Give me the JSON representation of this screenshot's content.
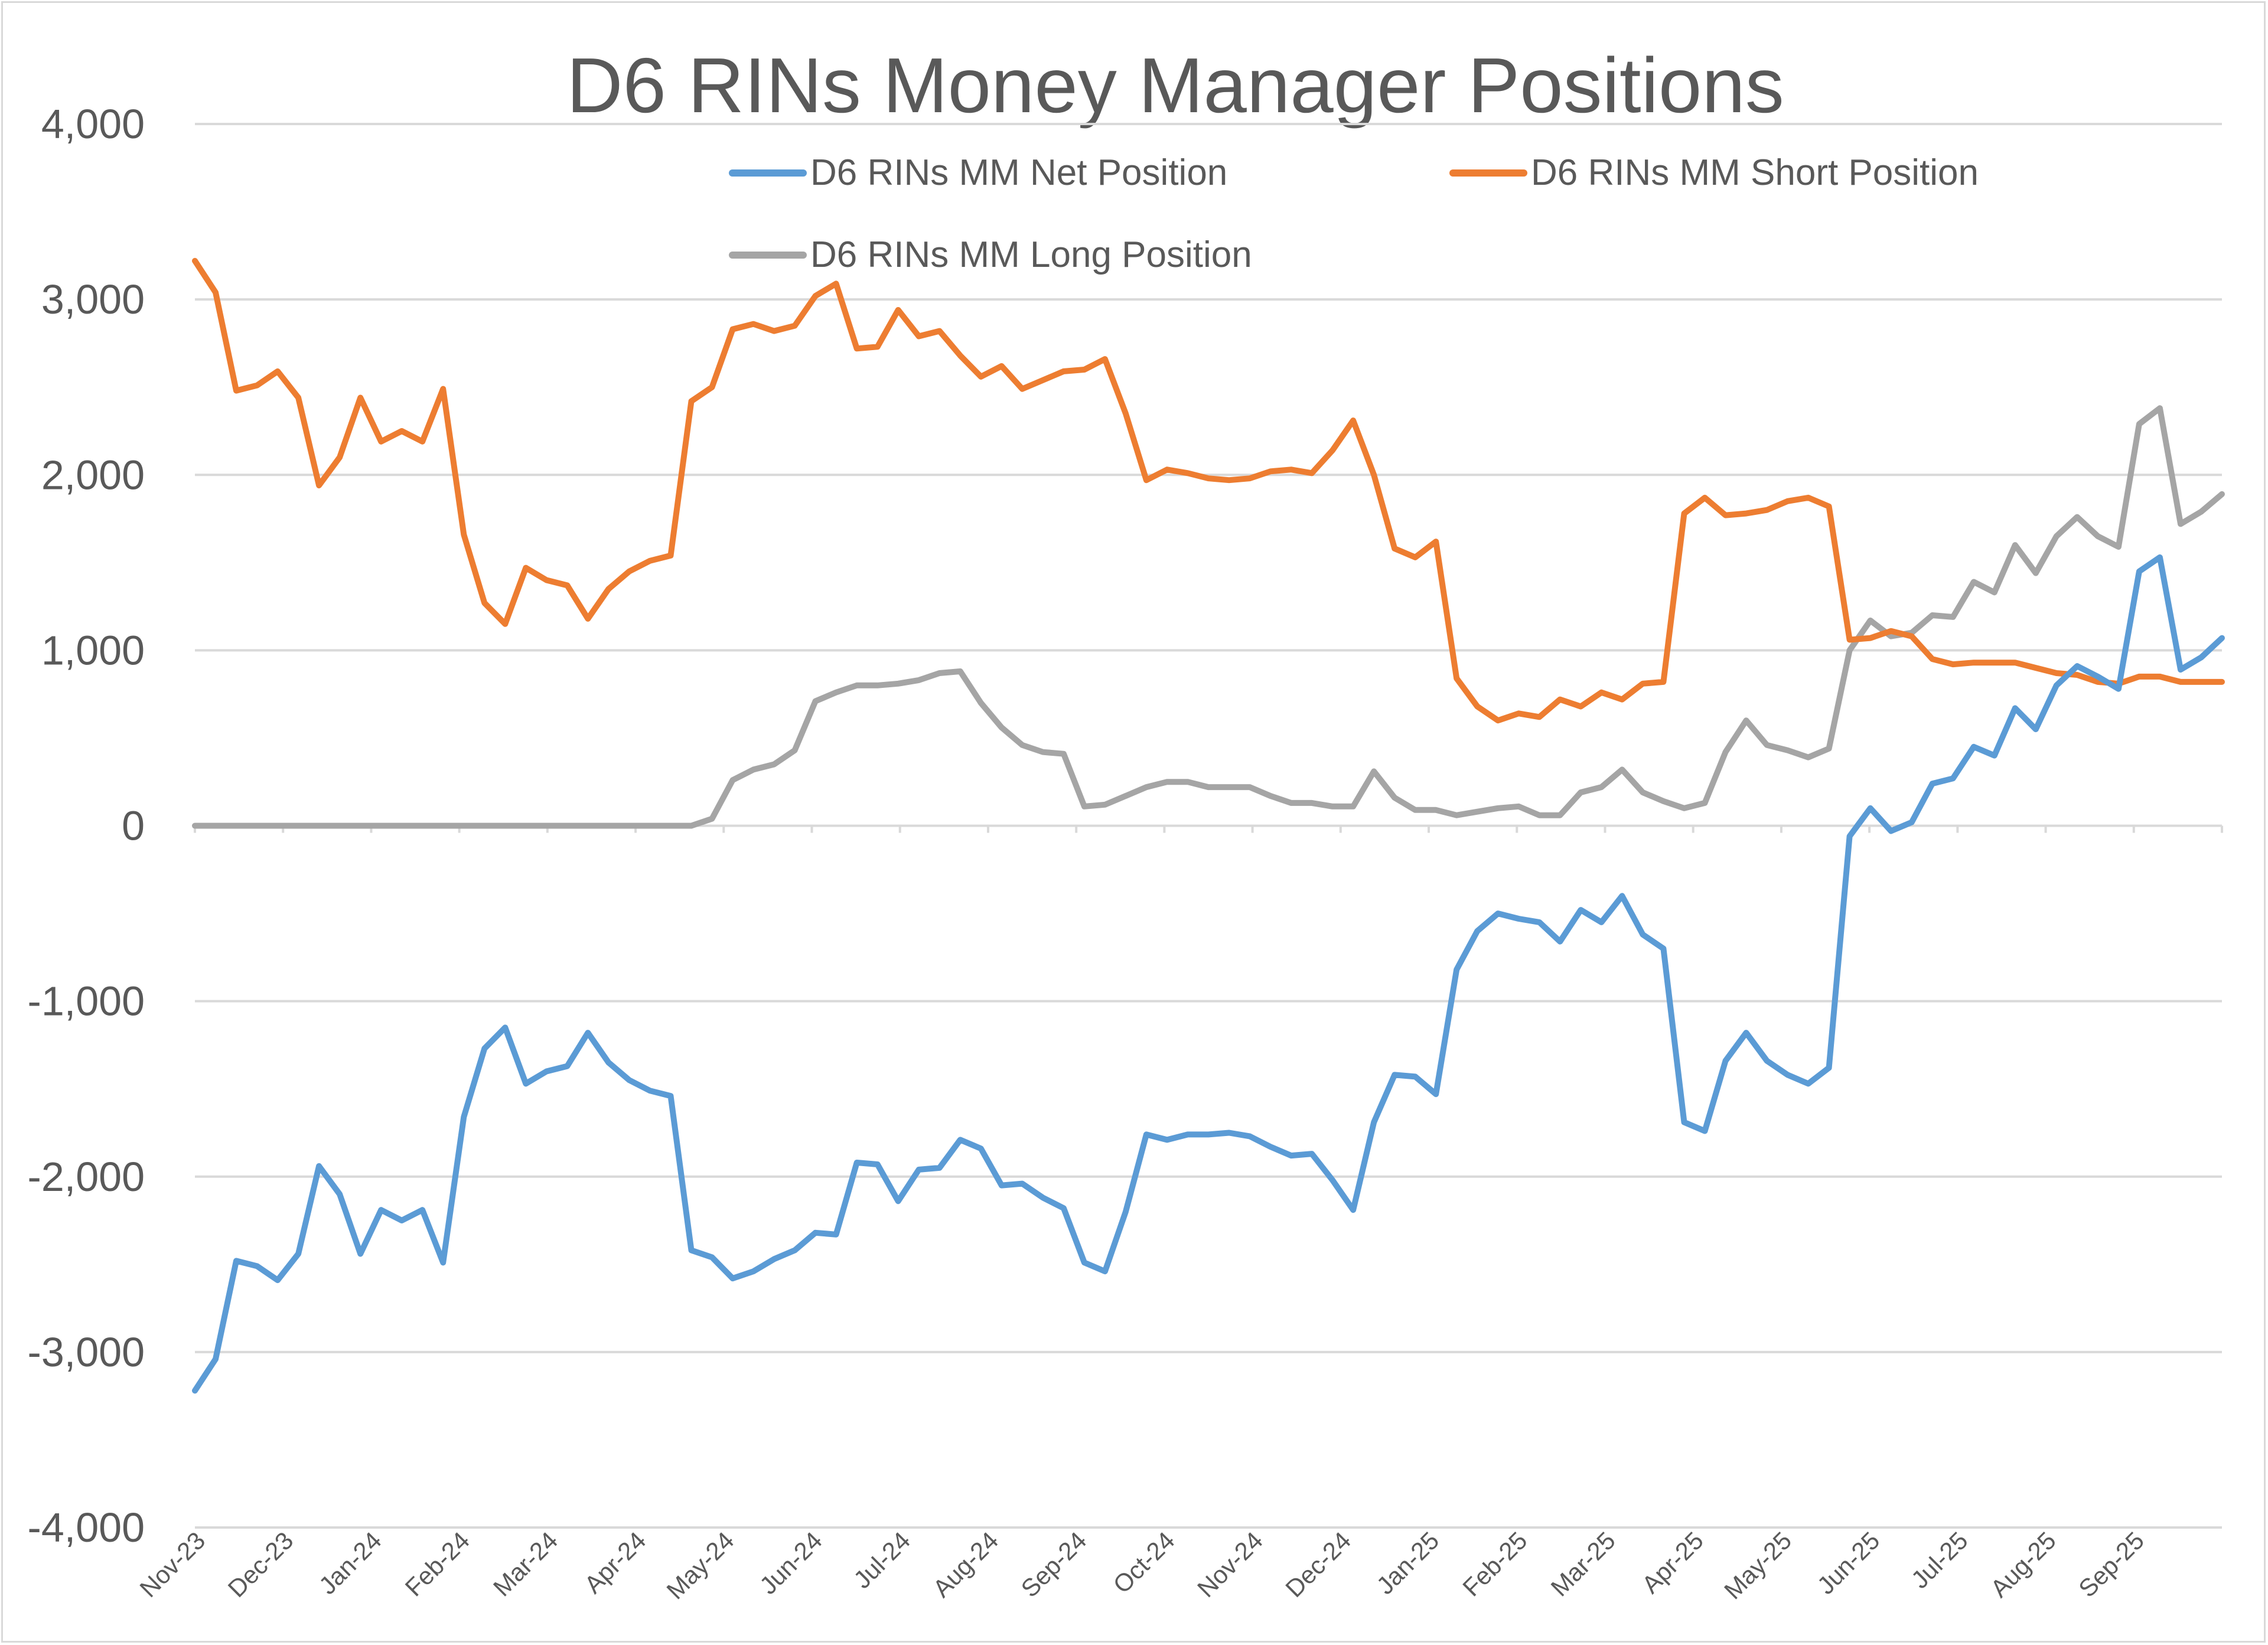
{
  "chart_data": {
    "type": "line",
    "title": "D6 RINs Money Manager Positions",
    "xlabel": "",
    "ylabel": "",
    "ylim": [
      -4000,
      4000
    ],
    "yticks": [
      4000,
      3000,
      2000,
      1000,
      0,
      -1000,
      -2000,
      -3000,
      -4000
    ],
    "ytick_labels": [
      "4,000",
      "3,000",
      "2,000",
      "1,000",
      "0",
      "-1,000",
      "-2,000",
      "-3,000",
      "-4,000"
    ],
    "x_tick_labels": [
      "Nov-23",
      "Dec-23",
      "Jan-24",
      "Feb-24",
      "Mar-24",
      "Apr-24",
      "May-24",
      "Jun-24",
      "Jul-24",
      "Aug-24",
      "Sep-24",
      "Oct-24",
      "Nov-24",
      "Dec-24",
      "Jan-25",
      "Feb-25",
      "Mar-25",
      "Apr-25",
      "May-25",
      "Jun-25",
      "Jul-25",
      "Aug-25",
      "Sep-25"
    ],
    "grid": true,
    "legend": "top",
    "series": [
      {
        "name": "D6 RINs MM Net Position",
        "color": "#5b9bd5",
        "values": [
          -3220,
          -3040,
          -2480,
          -2510,
          -2590,
          -2440,
          -1940,
          -2100,
          -2440,
          -2190,
          -2250,
          -2190,
          -2490,
          -1660,
          -1270,
          -1150,
          -1470,
          -1400,
          -1370,
          -1180,
          -1350,
          -1450,
          -1510,
          -1540,
          -2420,
          -2460,
          -2580,
          -2540,
          -2470,
          -2420,
          -2320,
          -2330,
          -1920,
          -1930,
          -2140,
          -1960,
          -1950,
          -1790,
          -1840,
          -2050,
          -2040,
          -2120,
          -2180,
          -2490,
          -2540,
          -2200,
          -1760,
          -1790,
          -1760,
          -1760,
          -1750,
          -1770,
          -1830,
          -1880,
          -1870,
          -2020,
          -2190,
          -1690,
          -1420,
          -1430,
          -1530,
          -820,
          -600,
          -500,
          -530,
          -550,
          -660,
          -480,
          -550,
          -400,
          -620,
          -700,
          -1690,
          -1740,
          -1340,
          -1180,
          -1340,
          -1420,
          -1470,
          -1380,
          -60,
          100,
          -30,
          20,
          240,
          270,
          450,
          400,
          670,
          550,
          800,
          910,
          850,
          780,
          1450,
          1530,
          890,
          960,
          1070
        ]
      },
      {
        "name": "D6 RINs MM Short Position",
        "color": "#ed7d31",
        "values": [
          3220,
          3040,
          2480,
          2510,
          2590,
          2440,
          1940,
          2100,
          2440,
          2190,
          2250,
          2190,
          2490,
          1660,
          1270,
          1150,
          1470,
          1400,
          1370,
          1180,
          1350,
          1450,
          1510,
          1540,
          2420,
          2500,
          2830,
          2860,
          2820,
          2850,
          3020,
          3090,
          2720,
          2730,
          2940,
          2790,
          2820,
          2680,
          2560,
          2620,
          2490,
          2540,
          2590,
          2600,
          2660,
          2350,
          1970,
          2030,
          2010,
          1980,
          1970,
          1980,
          2020,
          2030,
          2010,
          2140,
          2310,
          2000,
          1580,
          1530,
          1620,
          840,
          680,
          600,
          640,
          620,
          720,
          680,
          760,
          720,
          810,
          820,
          1780,
          1870,
          1770,
          1780,
          1800,
          1850,
          1870,
          1820,
          1060,
          1070,
          1110,
          1080,
          950,
          920,
          930,
          930,
          930,
          900,
          870,
          860,
          820,
          810,
          850,
          850,
          820,
          820,
          820
        ]
      },
      {
        "name": "D6 RINs MM Long Position",
        "color": "#a5a5a5",
        "values": [
          0,
          0,
          0,
          0,
          0,
          0,
          0,
          0,
          0,
          0,
          0,
          0,
          0,
          0,
          0,
          0,
          0,
          0,
          0,
          0,
          0,
          0,
          0,
          0,
          0,
          40,
          260,
          320,
          350,
          430,
          710,
          760,
          800,
          800,
          810,
          830,
          870,
          880,
          700,
          560,
          460,
          420,
          410,
          110,
          120,
          170,
          220,
          250,
          250,
          220,
          220,
          220,
          170,
          130,
          130,
          110,
          110,
          310,
          160,
          90,
          90,
          60,
          80,
          100,
          110,
          60,
          60,
          190,
          220,
          320,
          190,
          140,
          100,
          130,
          420,
          600,
          460,
          430,
          390,
          440,
          1000,
          1170,
          1080,
          1100,
          1200,
          1190,
          1390,
          1330,
          1600,
          1440,
          1650,
          1760,
          1650,
          1590,
          2290,
          2380,
          1720,
          1790,
          1890
        ]
      }
    ]
  }
}
